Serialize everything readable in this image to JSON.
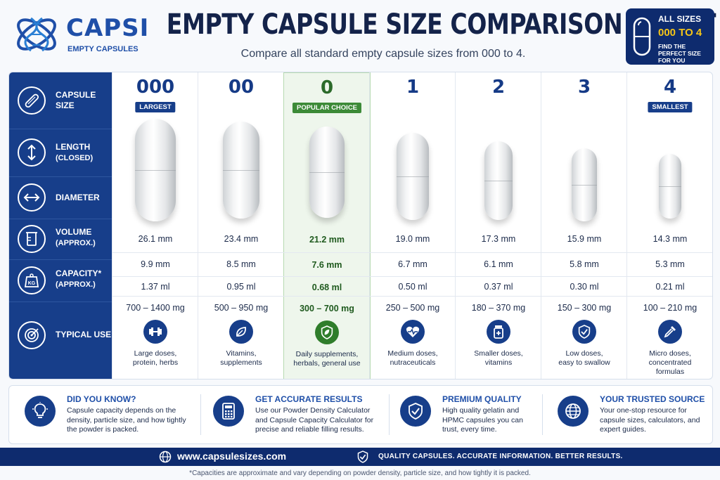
{
  "header": {
    "logo_title": "CAPSI",
    "logo_subtitle": "EMPTY CAPSULES",
    "title": "EMPTY CAPSULE SIZE COMPARISON CHART",
    "subtitle": "Compare all standard empty capsule sizes from 000 to 4.",
    "badge": {
      "line1": "ALL SIZES",
      "line2": "000 TO 4",
      "line3": "FIND THE PERFECT SIZE FOR YOU"
    }
  },
  "sidebar": [
    {
      "label": "CAPSULE",
      "label2": "SIZE",
      "icon": "capsule-icon"
    },
    {
      "label": "LENGTH",
      "label2": "(CLOSED)",
      "icon": "vertical-arrows-icon"
    },
    {
      "label": "DIAMETER",
      "label2": "",
      "icon": "horizontal-arrows-icon"
    },
    {
      "label": "VOLUME",
      "label2": "(APPROX.)",
      "icon": "beaker-icon"
    },
    {
      "label": "CAPACITY*",
      "label2": "(APPROX.)",
      "icon": "scale-icon"
    },
    {
      "label": "TYPICAL USE",
      "label2": "",
      "icon": "target-icon"
    }
  ],
  "sizes": [
    {
      "size": "000",
      "tag": "LARGEST",
      "length": "26.1 mm",
      "diameter": "9.9 mm",
      "volume": "1.37 ml",
      "capacity": "700 – 1400 mg",
      "use_line1": "Large doses,",
      "use_line2": "protein, herbs",
      "use_line3": "",
      "icon": "dumbbell-icon",
      "popular": false
    },
    {
      "size": "00",
      "tag": "",
      "length": "23.4 mm",
      "diameter": "8.5 mm",
      "volume": "0.95 ml",
      "capacity": "500 – 950 mg",
      "use_line1": "Vitamins,",
      "use_line2": "supplements",
      "use_line3": "",
      "icon": "leaf-icon",
      "popular": false
    },
    {
      "size": "0",
      "tag": "POPULAR CHOICE",
      "length": "21.2 mm",
      "diameter": "7.6 mm",
      "volume": "0.68 ml",
      "capacity": "300 – 700 mg",
      "use_line1": "Daily supplements,",
      "use_line2": "herbals, general use",
      "use_line3": "",
      "icon": "shield-leaf-icon",
      "popular": true
    },
    {
      "size": "1",
      "tag": "",
      "length": "19.0 mm",
      "diameter": "6.7 mm",
      "volume": "0.50 ml",
      "capacity": "250 – 500 mg",
      "use_line1": "Medium doses,",
      "use_line2": "nutraceuticals",
      "use_line3": "",
      "icon": "heart-pulse-icon",
      "popular": false
    },
    {
      "size": "2",
      "tag": "",
      "length": "17.3 mm",
      "diameter": "6.1 mm",
      "volume": "0.37 ml",
      "capacity": "180 – 370 mg",
      "use_line1": "Smaller doses,",
      "use_line2": "vitamins",
      "use_line3": "",
      "icon": "pill-bottle-icon",
      "popular": false
    },
    {
      "size": "3",
      "tag": "",
      "length": "15.9 mm",
      "diameter": "5.8 mm",
      "volume": "0.30 ml",
      "capacity": "150 – 300 mg",
      "use_line1": "Low doses,",
      "use_line2": "easy to swallow",
      "use_line3": "",
      "icon": "shield-check-icon",
      "popular": false
    },
    {
      "size": "4",
      "tag": "SMALLEST",
      "length": "14.3 mm",
      "diameter": "5.3 mm",
      "volume": "0.21 ml",
      "capacity": "100 – 210 mg",
      "use_line1": "Micro doses,",
      "use_line2": "concentrated",
      "use_line3": "formulas",
      "icon": "dropper-icon",
      "popular": false
    }
  ],
  "info": [
    {
      "title": "DID YOU KNOW?",
      "body": "Capsule capacity depends on the density, particle size, and how tightly the powder is packed.",
      "icon": "lightbulb-icon"
    },
    {
      "title": "GET ACCURATE RESULTS",
      "body": "Use our Powder Density Calculator and Capsule Capacity Calculator for precise and reliable filling results.",
      "icon": "calculator-icon"
    },
    {
      "title": "PREMIUM QUALITY",
      "body": "High quality gelatin and HPMC capsules you can trust, every time.",
      "icon": "shield-check-icon"
    },
    {
      "title": "YOUR TRUSTED SOURCE",
      "body": "Your one-stop resource for capsule sizes, calculators, and expert guides.",
      "icon": "globe-icon"
    }
  ],
  "footer": {
    "url": "www.capsulesizes.com",
    "tagline": "QUALITY CAPSULES. ACCURATE INFORMATION. BETTER RESULTS.",
    "footnote": "*Capacities are approximate and vary depending on powder density, particle size, and how tightly it is packed."
  },
  "colors": {
    "navy": "#173e8a",
    "dark_navy": "#0e2b6e",
    "green": "#3c8a37",
    "yellow": "#f5c518"
  }
}
